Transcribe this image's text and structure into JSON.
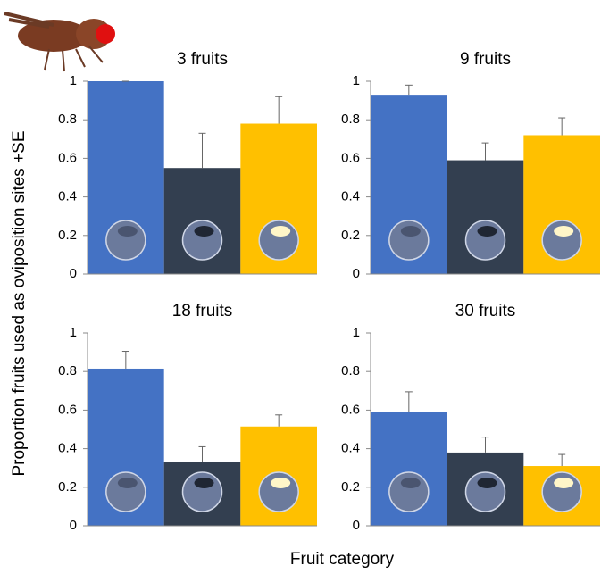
{
  "ylabel": "Proportion fruits used as oviposition sites +SE",
  "xlabel": "Fruit category",
  "chart_data": [
    {
      "type": "bar",
      "title": "3 fruits",
      "categories": [
        null,
        null,
        null
      ],
      "values": [
        1.0,
        0.55,
        0.78
      ],
      "errors": [
        0,
        0.18,
        0.14
      ],
      "colors": [
        "#4472c4",
        "#333f50",
        "#ffc000"
      ],
      "ylim": [
        0,
        1
      ],
      "yticks": [
        0,
        0.2,
        0.4,
        0.6,
        0.8,
        1
      ]
    },
    {
      "type": "bar",
      "title": "9 fruits",
      "categories": [
        null,
        null,
        null
      ],
      "values": [
        0.93,
        0.59,
        0.72
      ],
      "errors": [
        0.05,
        0.09,
        0.09
      ],
      "colors": [
        "#4472c4",
        "#333f50",
        "#ffc000"
      ],
      "ylim": [
        0,
        1
      ],
      "yticks": [
        0,
        0.2,
        0.4,
        0.6,
        0.8,
        1
      ]
    },
    {
      "type": "bar",
      "title": "18 fruits",
      "categories": [
        null,
        null,
        null
      ],
      "values": [
        0.815,
        0.33,
        0.515
      ],
      "errors": [
        0.09,
        0.08,
        0.06
      ],
      "colors": [
        "#4472c4",
        "#333f50",
        "#ffc000"
      ],
      "ylim": [
        0,
        1
      ],
      "yticks": [
        0,
        0.2,
        0.4,
        0.6,
        0.8,
        1
      ]
    },
    {
      "type": "bar",
      "title": "30 fruits",
      "categories": [
        null,
        null,
        null
      ],
      "values": [
        0.59,
        0.38,
        0.31
      ],
      "errors": [
        0.105,
        0.08,
        0.06
      ],
      "colors": [
        "#4472c4",
        "#333f50",
        "#ffc000"
      ],
      "ylim": [
        0,
        1
      ],
      "yticks": [
        0,
        0.2,
        0.4,
        0.6,
        0.8,
        1
      ]
    }
  ]
}
